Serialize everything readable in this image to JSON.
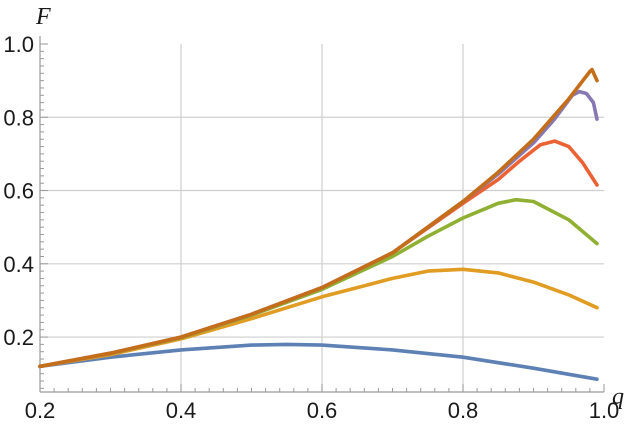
{
  "chart_data": {
    "type": "line",
    "title": "",
    "xlabel": "q",
    "ylabel": "F",
    "xlim": [
      0.2,
      1.0
    ],
    "ylim": [
      0.05,
      1.0
    ],
    "grid": true,
    "legend": "none",
    "x_ticks": [
      {
        "value": 0.2,
        "label": "0.2"
      },
      {
        "value": 0.4,
        "label": "0.4"
      },
      {
        "value": 0.6,
        "label": "0.6"
      },
      {
        "value": 0.8,
        "label": "0.8"
      },
      {
        "value": 1.0,
        "label": "1.0"
      }
    ],
    "y_ticks": [
      {
        "value": 0.2,
        "label": "0.2"
      },
      {
        "value": 0.4,
        "label": "0.4"
      },
      {
        "value": 0.6,
        "label": "0.6"
      },
      {
        "value": 0.8,
        "label": "0.8"
      },
      {
        "value": 1.0,
        "label": "1.0"
      }
    ],
    "series": [
      {
        "color": "#5E81B5",
        "points": [
          [
            0.2,
            0.12
          ],
          [
            0.3,
            0.145
          ],
          [
            0.4,
            0.165
          ],
          [
            0.5,
            0.178
          ],
          [
            0.55,
            0.18
          ],
          [
            0.6,
            0.178
          ],
          [
            0.7,
            0.165
          ],
          [
            0.8,
            0.145
          ],
          [
            0.9,
            0.115
          ],
          [
            0.99,
            0.085
          ]
        ]
      },
      {
        "color": "#E19C24",
        "points": [
          [
            0.2,
            0.12
          ],
          [
            0.3,
            0.152
          ],
          [
            0.4,
            0.195
          ],
          [
            0.5,
            0.25
          ],
          [
            0.6,
            0.31
          ],
          [
            0.65,
            0.335
          ],
          [
            0.7,
            0.36
          ],
          [
            0.75,
            0.38
          ],
          [
            0.8,
            0.385
          ],
          [
            0.85,
            0.375
          ],
          [
            0.9,
            0.35
          ],
          [
            0.95,
            0.315
          ],
          [
            0.99,
            0.28
          ]
        ]
      },
      {
        "color": "#8FB032",
        "points": [
          [
            0.2,
            0.12
          ],
          [
            0.3,
            0.155
          ],
          [
            0.4,
            0.198
          ],
          [
            0.5,
            0.26
          ],
          [
            0.6,
            0.33
          ],
          [
            0.7,
            0.42
          ],
          [
            0.75,
            0.475
          ],
          [
            0.8,
            0.525
          ],
          [
            0.85,
            0.565
          ],
          [
            0.875,
            0.575
          ],
          [
            0.9,
            0.57
          ],
          [
            0.95,
            0.52
          ],
          [
            0.99,
            0.455
          ]
        ]
      },
      {
        "color": "#EB6235",
        "points": [
          [
            0.2,
            0.12
          ],
          [
            0.3,
            0.156
          ],
          [
            0.4,
            0.2
          ],
          [
            0.5,
            0.262
          ],
          [
            0.6,
            0.335
          ],
          [
            0.7,
            0.43
          ],
          [
            0.8,
            0.565
          ],
          [
            0.85,
            0.63
          ],
          [
            0.88,
            0.68
          ],
          [
            0.91,
            0.725
          ],
          [
            0.93,
            0.735
          ],
          [
            0.95,
            0.72
          ],
          [
            0.97,
            0.675
          ],
          [
            0.99,
            0.615
          ]
        ]
      },
      {
        "color": "#8778B3",
        "points": [
          [
            0.2,
            0.12
          ],
          [
            0.3,
            0.156
          ],
          [
            0.4,
            0.2
          ],
          [
            0.5,
            0.262
          ],
          [
            0.6,
            0.335
          ],
          [
            0.7,
            0.43
          ],
          [
            0.8,
            0.57
          ],
          [
            0.85,
            0.645
          ],
          [
            0.9,
            0.73
          ],
          [
            0.93,
            0.795
          ],
          [
            0.955,
            0.86
          ],
          [
            0.965,
            0.87
          ],
          [
            0.975,
            0.865
          ],
          [
            0.985,
            0.84
          ],
          [
            0.99,
            0.795
          ]
        ]
      },
      {
        "color": "#C56E1A",
        "points": [
          [
            0.2,
            0.12
          ],
          [
            0.3,
            0.156
          ],
          [
            0.4,
            0.2
          ],
          [
            0.5,
            0.262
          ],
          [
            0.6,
            0.335
          ],
          [
            0.7,
            0.43
          ],
          [
            0.8,
            0.57
          ],
          [
            0.85,
            0.65
          ],
          [
            0.9,
            0.74
          ],
          [
            0.95,
            0.85
          ],
          [
            0.98,
            0.925
          ],
          [
            0.983,
            0.93
          ],
          [
            0.99,
            0.9
          ]
        ]
      }
    ]
  }
}
